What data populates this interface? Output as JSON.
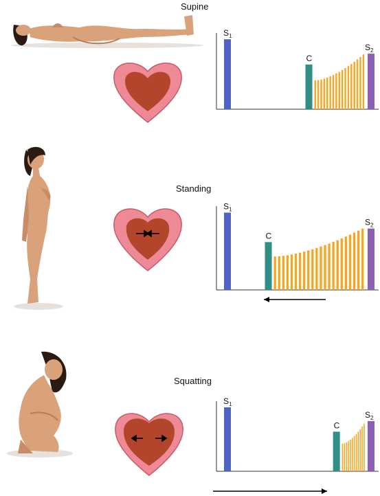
{
  "colors": {
    "s1": "#4f63c4",
    "c": "#2f8f86",
    "s2": "#8b5fb3",
    "murmur": "#f5a623",
    "axis": "#333333",
    "arrow": "#000000",
    "skin": "#d9a27a",
    "hair": "#2b1a12",
    "heart_wall": "#ee8a96",
    "heart_cavity": "#b2452c"
  },
  "icons": {
    "supine": "woman-lying-supine-figure",
    "standing": "woman-standing-figure",
    "squatting": "woman-squatting-figure",
    "heart": "heart-cross-section-icon"
  },
  "panels": [
    {
      "key": "supine",
      "title": "Supine",
      "heart_arrows": "none",
      "shift_arrow": "none",
      "chart_data": {
        "type": "bar",
        "categories": [
          "S1",
          "C",
          "murmur",
          "S2"
        ],
        "labels": {
          "s1": "S",
          "s1_sub": "1",
          "c": "C",
          "s2": "S",
          "s2_sub": "2"
        },
        "click_position": 0.57,
        "s1_height": 0.97,
        "c_height": 0.62,
        "s2_height": 0.77,
        "murmur_start": 0.4,
        "murmur_end": 0.76,
        "murmur_bars": 17
      }
    },
    {
      "key": "standing",
      "title": "Standing",
      "heart_arrows": "inward",
      "shift_arrow": "left",
      "chart_data": {
        "type": "bar",
        "categories": [
          "S1",
          "C",
          "murmur",
          "S2"
        ],
        "labels": {
          "s1": "S",
          "s1_sub": "1",
          "c": "C",
          "s2": "S",
          "s2_sub": "2"
        },
        "click_position": 0.32,
        "s1_height": 0.97,
        "c_height": 0.6,
        "s2_height": 0.77,
        "murmur_start": 0.42,
        "murmur_end": 0.77,
        "murmur_bars": 22
      }
    },
    {
      "key": "squatting",
      "title": "Squatting",
      "heart_arrows": "outward",
      "shift_arrow": "right",
      "chart_data": {
        "type": "bar",
        "categories": [
          "S1",
          "C",
          "murmur",
          "S2"
        ],
        "labels": {
          "s1": "S",
          "s1_sub": "1",
          "c": "C",
          "s2": "S",
          "s2_sub": "2"
        },
        "click_position": 0.74,
        "s1_height": 0.97,
        "c_height": 0.6,
        "s2_height": 0.76,
        "murmur_start": 0.42,
        "murmur_end": 0.72,
        "murmur_bars": 12
      }
    }
  ]
}
